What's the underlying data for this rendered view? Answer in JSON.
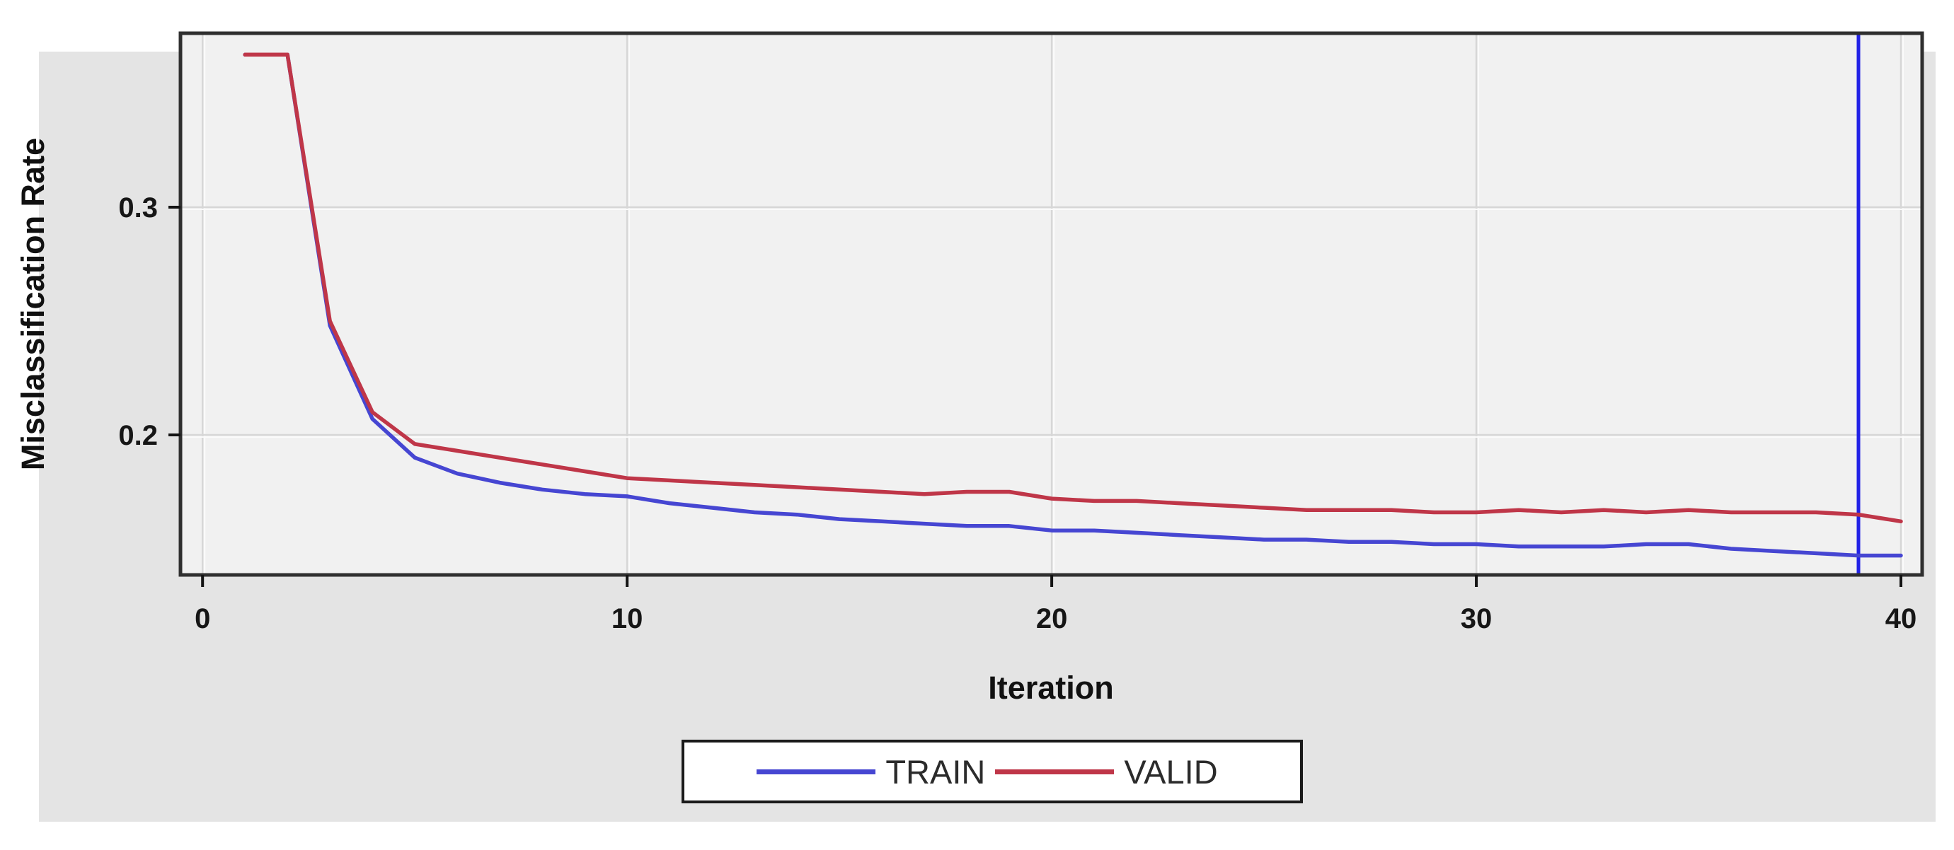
{
  "figure": {
    "y_axis_title": "Misclassification Rate",
    "x_axis_title": "Iteration"
  },
  "legend": {
    "items": [
      {
        "label": "TRAIN",
        "color": "#4646d2"
      },
      {
        "label": "VALID",
        "color": "#bf3648"
      }
    ]
  },
  "colors": {
    "page_background": "#ffffff",
    "panel_background": "#e4e4e4",
    "plot_wall": "#f1f1f1",
    "gridline": "#d7d7d7",
    "plot_border": "#2f2f2f",
    "reference_line": "#2222e6",
    "train_line": "#4646d2",
    "valid_line": "#bf3648"
  },
  "chart_data": {
    "type": "line",
    "title": "",
    "xlabel": "Iteration",
    "ylabel": "Misclassification Rate",
    "xlim": [
      -0.52,
      40.5
    ],
    "ylim": [
      0.1385,
      0.3764
    ],
    "grid": true,
    "legend_position": "bottom",
    "x_ticks": [
      0,
      10,
      20,
      30,
      40
    ],
    "x_tick_labels": [
      "0",
      "10",
      "20",
      "30",
      "40"
    ],
    "y_ticks": [
      0.2,
      0.3
    ],
    "y_tick_labels": [
      "0.2",
      "0.3"
    ],
    "reference_line": {
      "x": 39,
      "color": "#2222e6"
    },
    "x": [
      1,
      2,
      3,
      4,
      5,
      6,
      7,
      8,
      9,
      10,
      11,
      12,
      13,
      14,
      15,
      16,
      17,
      18,
      19,
      20,
      21,
      22,
      23,
      24,
      25,
      26,
      27,
      28,
      29,
      30,
      31,
      32,
      33,
      34,
      35,
      36,
      37,
      38,
      39,
      40
    ],
    "series": [
      {
        "name": "TRAIN",
        "color": "#4646d2",
        "values": [
          0.367,
          0.367,
          0.248,
          0.207,
          0.19,
          0.183,
          0.179,
          0.176,
          0.174,
          0.173,
          0.17,
          0.168,
          0.166,
          0.165,
          0.163,
          0.162,
          0.161,
          0.16,
          0.16,
          0.158,
          0.158,
          0.157,
          0.156,
          0.155,
          0.154,
          0.154,
          0.153,
          0.153,
          0.152,
          0.152,
          0.151,
          0.151,
          0.151,
          0.152,
          0.152,
          0.15,
          0.149,
          0.148,
          0.147,
          0.147
        ]
      },
      {
        "name": "VALID",
        "color": "#bf3648",
        "values": [
          0.367,
          0.367,
          0.25,
          0.21,
          0.196,
          0.193,
          0.19,
          0.187,
          0.184,
          0.181,
          0.18,
          0.179,
          0.178,
          0.177,
          0.176,
          0.175,
          0.174,
          0.175,
          0.175,
          0.172,
          0.171,
          0.171,
          0.17,
          0.169,
          0.168,
          0.167,
          0.167,
          0.167,
          0.166,
          0.166,
          0.167,
          0.166,
          0.167,
          0.166,
          0.167,
          0.166,
          0.166,
          0.166,
          0.165,
          0.162
        ]
      }
    ]
  }
}
